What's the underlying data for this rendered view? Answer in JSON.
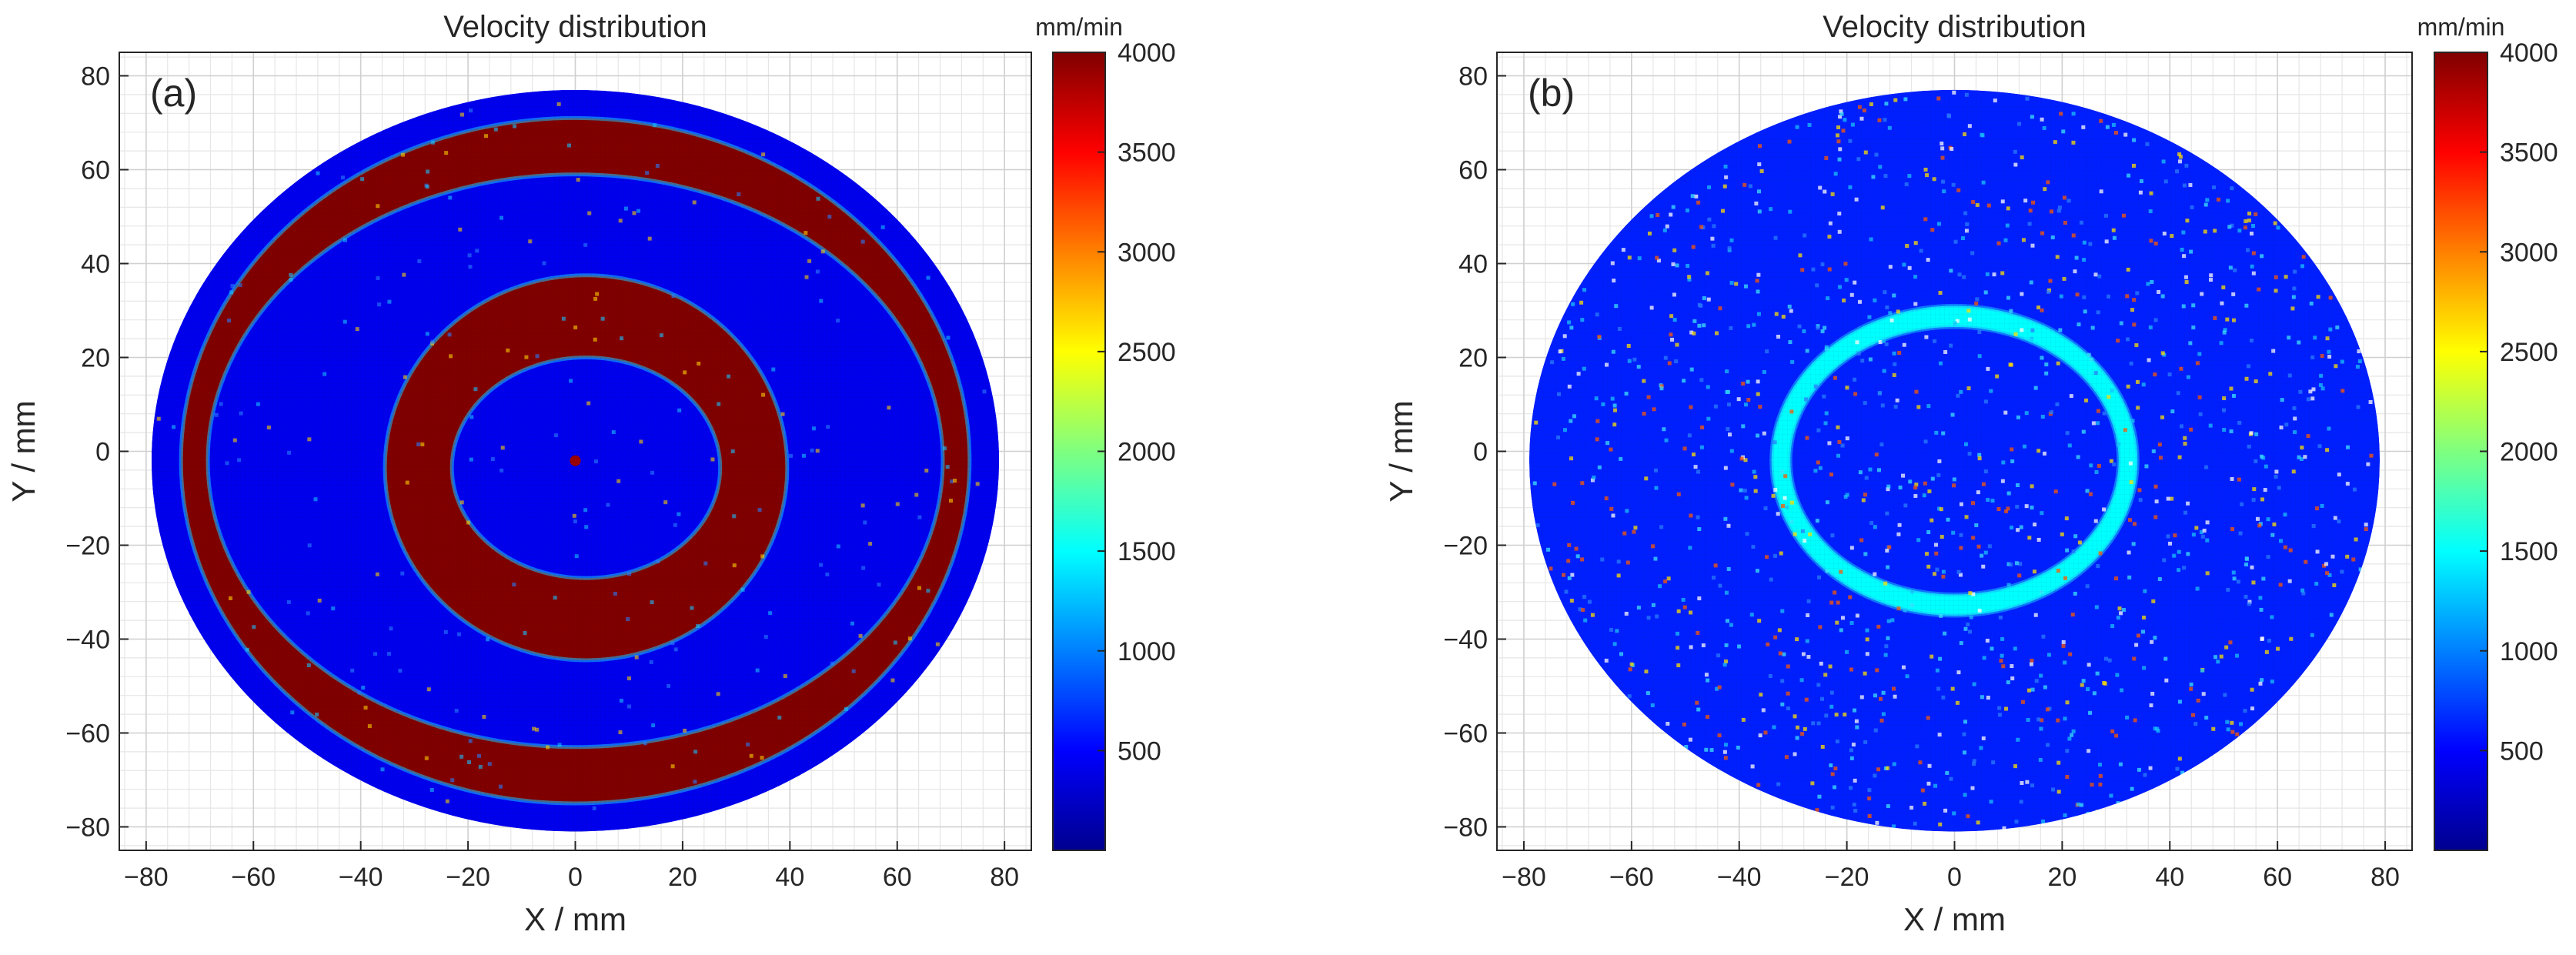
{
  "chart_data": [
    {
      "type": "heatmap",
      "panel_label": "(a)",
      "title": "Velocity distribution",
      "xlabel": "X / mm",
      "ylabel": "Y / mm",
      "xlim": [
        -85,
        85
      ],
      "ylim": [
        -85,
        85
      ],
      "x_ticks": [
        -80,
        -60,
        -40,
        -20,
        0,
        20,
        40,
        60,
        80
      ],
      "y_ticks": [
        -80,
        -60,
        -40,
        -20,
        0,
        20,
        40,
        60,
        80
      ],
      "x_tick_labels": [
        "−80",
        "−60",
        "−40",
        "−20",
        "0",
        "20",
        "40",
        "60",
        "80"
      ],
      "y_tick_labels": [
        "−80",
        "−60",
        "−40",
        "−20",
        "0",
        "20",
        "40",
        "60",
        "80"
      ],
      "grid": true,
      "colorbar": {
        "unit": "mm/min",
        "range": [
          0,
          4000
        ],
        "ticks": [
          500,
          1000,
          1500,
          2000,
          2500,
          3000,
          3500,
          4000
        ],
        "tick_labels": [
          "500",
          "1000",
          "1500",
          "2000",
          "2500",
          "3000",
          "3500",
          "4000"
        ],
        "colormap": "jet"
      },
      "disk": {
        "center": [
          0,
          -2
        ],
        "rx": 79,
        "ry": 79,
        "clip_x": [
          -79,
          79
        ],
        "clip_y": [
          -81,
          77
        ]
      },
      "background_value": 420,
      "rings": [
        {
          "name": "outer-high-velocity-band",
          "outer": [
            73.5,
            73
          ],
          "inner": [
            68.5,
            61
          ],
          "center": [
            0,
            -2
          ],
          "value": 4000
        },
        {
          "name": "inner-high-velocity-band",
          "outer": [
            37.5,
            41
          ],
          "inner": [
            25,
            23.5
          ],
          "center": [
            2,
            -3.5
          ],
          "value": 4000
        }
      ],
      "center_marker": {
        "x": 0,
        "y": -2,
        "value": 3900
      }
    },
    {
      "type": "heatmap",
      "panel_label": "(b)",
      "title": "Velocity distribution",
      "xlabel": "X / mm",
      "ylabel": "Y / mm",
      "xlim": [
        -85,
        85
      ],
      "ylim": [
        -85,
        85
      ],
      "x_ticks": [
        -80,
        -60,
        -40,
        -20,
        0,
        20,
        40,
        60,
        80
      ],
      "y_ticks": [
        -80,
        -60,
        -40,
        -20,
        0,
        20,
        40,
        60,
        80
      ],
      "x_tick_labels": [
        "−80",
        "−60",
        "−40",
        "−20",
        "0",
        "20",
        "40",
        "60",
        "80"
      ],
      "y_tick_labels": [
        "−80",
        "−60",
        "−40",
        "−20",
        "0",
        "20",
        "40",
        "60",
        "80"
      ],
      "grid": true,
      "colorbar": {
        "unit": "mm/min",
        "range": [
          0,
          4000
        ],
        "ticks": [
          500,
          1000,
          1500,
          2000,
          2500,
          3000,
          3500,
          4000
        ],
        "tick_labels": [
          "500",
          "1000",
          "1500",
          "2000",
          "2500",
          "3000",
          "3500",
          "4000"
        ],
        "colormap": "jet"
      },
      "disk": {
        "center": [
          0,
          -2
        ],
        "rx": 79,
        "ry": 79,
        "clip_x": [
          -79,
          79
        ],
        "clip_y": [
          -81,
          77
        ]
      },
      "background_value": 620,
      "rings": [
        {
          "name": "transition-ring",
          "outer": [
            34,
            33
          ],
          "inner": [
            30.5,
            28.5
          ],
          "center": [
            0,
            -2
          ],
          "value": 1500
        }
      ]
    }
  ]
}
